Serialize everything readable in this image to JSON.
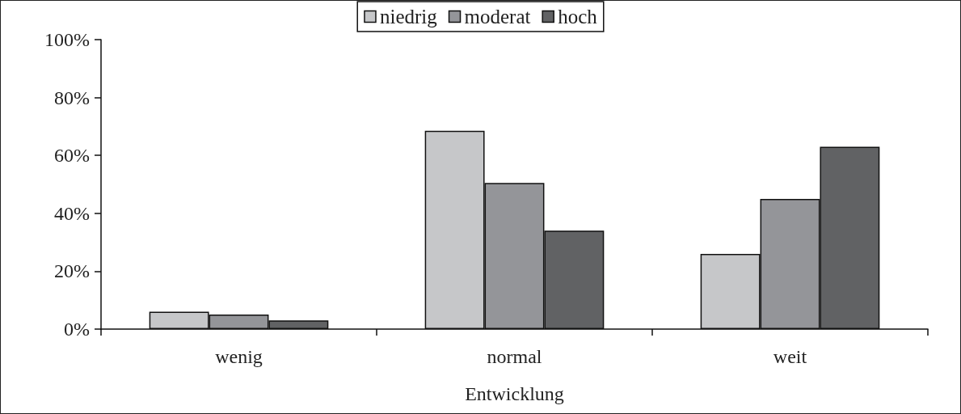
{
  "chart_data": {
    "type": "bar",
    "xlabel": "Entwicklung",
    "categories": [
      "wenig",
      "normal",
      "weit"
    ],
    "series": [
      {
        "name": "niedrig",
        "color": "#c6c7c9",
        "values": [
          6,
          68.5,
          26
        ]
      },
      {
        "name": "moderat",
        "color": "#949599",
        "values": [
          5,
          50.5,
          45
        ]
      },
      {
        "name": "hoch",
        "color": "#616264",
        "values": [
          3,
          34,
          63
        ]
      }
    ],
    "ylim": [
      0,
      100
    ],
    "yticks": [
      {
        "value": 0,
        "label": "0%"
      },
      {
        "value": 20,
        "label": "20%"
      },
      {
        "value": 40,
        "label": "40%"
      },
      {
        "value": 60,
        "label": "60%"
      },
      {
        "value": 80,
        "label": "80%"
      },
      {
        "value": 100,
        "label": "100%"
      }
    ],
    "grid": false,
    "legend": "top"
  }
}
